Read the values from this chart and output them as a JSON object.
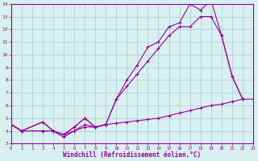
{
  "series1_x": [
    0,
    1,
    3,
    4,
    5,
    7,
    8,
    9
  ],
  "series1_y": [
    4.5,
    4.0,
    4.0,
    4.0,
    3.5,
    4.5,
    4.3,
    4.5
  ],
  "series2_x": [
    0,
    1,
    3,
    4,
    5,
    6,
    7,
    8,
    9,
    10,
    11,
    12,
    13,
    14,
    15,
    16,
    17,
    18,
    19,
    20,
    21,
    22
  ],
  "series2_y": [
    4.5,
    4.0,
    4.7,
    4.0,
    3.7,
    4.3,
    5.0,
    4.3,
    4.5,
    6.5,
    7.5,
    8.5,
    9.5,
    10.5,
    11.5,
    12.2,
    12.2,
    13.0,
    13.0,
    11.5,
    8.3,
    6.5
  ],
  "series3_x": [
    0,
    1,
    3,
    4,
    5,
    6,
    7,
    8,
    9,
    10,
    11,
    12,
    13,
    14,
    15,
    16,
    17,
    18,
    19,
    20,
    21,
    22
  ],
  "series3_y": [
    4.5,
    4.0,
    4.7,
    4.0,
    3.7,
    4.3,
    5.0,
    4.3,
    4.5,
    6.5,
    8.0,
    9.2,
    10.6,
    11.0,
    12.2,
    12.5,
    14.0,
    13.5,
    14.3,
    11.5,
    8.3,
    6.5
  ],
  "series4_x": [
    0,
    1,
    3,
    4,
    5,
    6,
    7,
    8,
    9,
    10,
    11,
    12,
    13,
    14,
    15,
    16,
    17,
    18,
    19,
    20,
    21,
    22,
    23
  ],
  "series4_y": [
    4.5,
    4.0,
    4.0,
    4.0,
    3.7,
    4.0,
    4.3,
    4.3,
    4.5,
    4.6,
    4.7,
    4.8,
    4.9,
    5.0,
    5.2,
    5.4,
    5.6,
    5.8,
    6.0,
    6.1,
    6.3,
    6.5,
    6.5
  ],
  "color": "#990099",
  "bg_color": "#d8f0f0",
  "grid_color": "#aacccc",
  "xlabel": "Windchill (Refroidissement éolien,°C)",
  "xlim": [
    0,
    23
  ],
  "ylim": [
    3,
    14
  ],
  "yticks": [
    3,
    4,
    5,
    6,
    7,
    8,
    9,
    10,
    11,
    12,
    13,
    14
  ],
  "xticks": [
    0,
    1,
    2,
    3,
    4,
    5,
    6,
    7,
    8,
    9,
    10,
    11,
    12,
    13,
    14,
    15,
    16,
    17,
    18,
    19,
    20,
    21,
    22,
    23
  ]
}
